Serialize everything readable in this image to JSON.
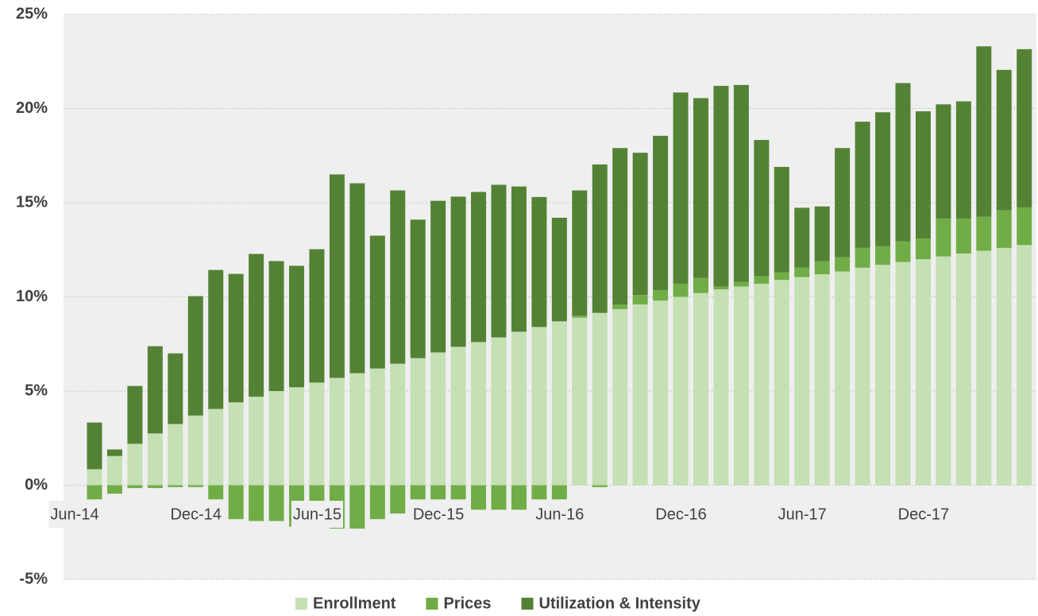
{
  "chart_data": {
    "type": "stacked-bar",
    "categories": [
      "Jun-14",
      null,
      null,
      null,
      null,
      null,
      "Dec-14",
      null,
      null,
      null,
      null,
      null,
      "Jun-15",
      null,
      null,
      null,
      null,
      null,
      "Dec-15",
      null,
      null,
      null,
      null,
      null,
      "Jun-16",
      null,
      null,
      null,
      null,
      null,
      "Dec-16",
      null,
      null,
      null,
      null,
      null,
      "Jun-17",
      null,
      null,
      null,
      null,
      null,
      "Dec-17",
      null,
      null,
      null,
      null
    ],
    "series": [
      {
        "name": "Enrollment",
        "color": "#c5e0b4",
        "values": [
          0.85,
          1.55,
          2.2,
          2.75,
          3.25,
          3.7,
          4.05,
          4.4,
          4.7,
          5.0,
          5.2,
          5.45,
          5.7,
          5.95,
          6.2,
          6.45,
          6.75,
          7.05,
          7.35,
          7.6,
          7.85,
          8.15,
          8.4,
          8.7,
          8.9,
          9.15,
          9.35,
          9.6,
          9.8,
          10.0,
          10.2,
          10.4,
          10.55,
          10.7,
          10.9,
          11.05,
          11.2,
          11.35,
          11.55,
          11.7,
          11.85,
          12.0,
          12.15,
          12.3,
          12.45,
          12.6,
          12.75
        ]
      },
      {
        "name": "Prices",
        "color": "#70ad47",
        "values": [
          -0.75,
          -0.45,
          -0.15,
          -0.15,
          -0.1,
          -0.1,
          -0.75,
          -1.8,
          -1.9,
          -1.9,
          -2.2,
          -2.2,
          -2.3,
          -2.3,
          -1.8,
          -1.5,
          -0.75,
          -0.75,
          -0.75,
          -1.3,
          -1.3,
          -1.3,
          -0.75,
          -0.75,
          0.1,
          -0.1,
          0.25,
          0.5,
          0.55,
          0.7,
          0.8,
          0.15,
          0.25,
          0.4,
          0.4,
          0.5,
          0.7,
          0.75,
          1.05,
          1.0,
          1.1,
          1.1,
          2.0,
          1.85,
          1.8,
          2.0,
          2.0
        ]
      },
      {
        "name": "Utilization & Intensity",
        "color": "#548235",
        "values": [
          2.48,
          0.35,
          3.07,
          4.63,
          3.75,
          6.34,
          7.38,
          6.82,
          7.58,
          6.9,
          6.45,
          7.08,
          10.8,
          10.08,
          7.05,
          9.2,
          7.35,
          8.05,
          7.97,
          7.97,
          8.1,
          7.71,
          6.9,
          5.5,
          6.65,
          7.88,
          8.3,
          7.55,
          8.2,
          10.15,
          9.55,
          10.65,
          10.45,
          7.23,
          5.6,
          3.18,
          2.9,
          5.8,
          6.7,
          7.1,
          8.4,
          6.75,
          6.07,
          6.23,
          9.05,
          7.45,
          8.4
        ]
      }
    ],
    "ylim": [
      -5,
      25
    ],
    "yticks": [
      {
        "value": -5,
        "label": "-5%"
      },
      {
        "value": 0,
        "label": "0%"
      },
      {
        "value": 5,
        "label": "5%"
      },
      {
        "value": 10,
        "label": "10%"
      },
      {
        "value": 15,
        "label": "15%"
      },
      {
        "value": 20,
        "label": "20%"
      },
      {
        "value": 25,
        "label": "25%"
      }
    ],
    "grid": true,
    "legend": "bottom",
    "background": "#efefef"
  }
}
